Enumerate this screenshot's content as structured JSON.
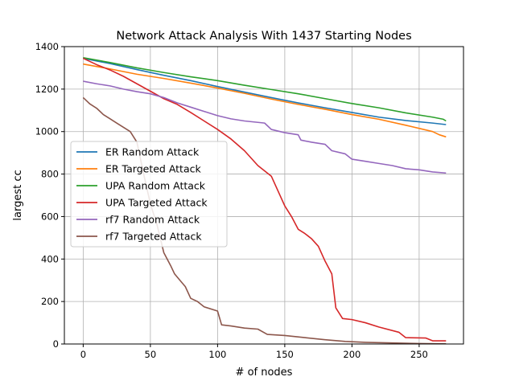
{
  "chart_data": {
    "type": "line",
    "title": "Network Attack Analysis With 1437 Starting Nodes",
    "xlabel": "# of nodes",
    "ylabel": "largest cc",
    "xlim": [
      -14,
      283
    ],
    "ylim": [
      0,
      1400
    ],
    "xticks": [
      0,
      50,
      100,
      150,
      200,
      250
    ],
    "yticks": [
      0,
      200,
      400,
      600,
      800,
      1000,
      1200,
      1400
    ],
    "grid": true,
    "legend_position": "center-left",
    "series": [
      {
        "name": "ER Random Attack",
        "color": "#1f77b4",
        "points": [
          [
            0,
            1345
          ],
          [
            20,
            1320
          ],
          [
            40,
            1292
          ],
          [
            60,
            1265
          ],
          [
            80,
            1240
          ],
          [
            100,
            1212
          ],
          [
            120,
            1186
          ],
          [
            140,
            1160
          ],
          [
            160,
            1135
          ],
          [
            180,
            1112
          ],
          [
            200,
            1090
          ],
          [
            220,
            1068
          ],
          [
            240,
            1052
          ],
          [
            260,
            1040
          ],
          [
            270,
            1033
          ]
        ]
      },
      {
        "name": "ER Targeted Attack",
        "color": "#ff7f0e",
        "points": [
          [
            0,
            1318
          ],
          [
            20,
            1295
          ],
          [
            40,
            1270
          ],
          [
            60,
            1250
          ],
          [
            80,
            1228
          ],
          [
            100,
            1205
          ],
          [
            120,
            1180
          ],
          [
            140,
            1153
          ],
          [
            160,
            1128
          ],
          [
            180,
            1105
          ],
          [
            200,
            1080
          ],
          [
            220,
            1058
          ],
          [
            240,
            1030
          ],
          [
            260,
            1000
          ],
          [
            265,
            985
          ],
          [
            270,
            975
          ]
        ]
      },
      {
        "name": "UPA Random Attack",
        "color": "#2ca02c",
        "points": [
          [
            0,
            1348
          ],
          [
            20,
            1325
          ],
          [
            40,
            1300
          ],
          [
            60,
            1278
          ],
          [
            80,
            1258
          ],
          [
            100,
            1240
          ],
          [
            120,
            1218
          ],
          [
            140,
            1198
          ],
          [
            160,
            1178
          ],
          [
            180,
            1155
          ],
          [
            200,
            1132
          ],
          [
            220,
            1112
          ],
          [
            240,
            1088
          ],
          [
            260,
            1068
          ],
          [
            268,
            1058
          ],
          [
            270,
            1050
          ]
        ]
      },
      {
        "name": "UPA Targeted Attack",
        "color": "#d62728",
        "points": [
          [
            0,
            1345
          ],
          [
            10,
            1315
          ],
          [
            20,
            1290
          ],
          [
            30,
            1260
          ],
          [
            40,
            1225
          ],
          [
            50,
            1190
          ],
          [
            60,
            1155
          ],
          [
            70,
            1128
          ],
          [
            80,
            1090
          ],
          [
            90,
            1050
          ],
          [
            100,
            1010
          ],
          [
            110,
            965
          ],
          [
            120,
            910
          ],
          [
            130,
            840
          ],
          [
            140,
            790
          ],
          [
            145,
            720
          ],
          [
            150,
            650
          ],
          [
            155,
            600
          ],
          [
            160,
            540
          ],
          [
            165,
            520
          ],
          [
            170,
            495
          ],
          [
            175,
            460
          ],
          [
            180,
            390
          ],
          [
            185,
            330
          ],
          [
            188,
            170
          ],
          [
            193,
            120
          ],
          [
            200,
            115
          ],
          [
            210,
            100
          ],
          [
            220,
            80
          ],
          [
            235,
            55
          ],
          [
            240,
            30
          ],
          [
            255,
            28
          ],
          [
            260,
            15
          ],
          [
            270,
            15
          ]
        ]
      },
      {
        "name": "rf7 Random Attack",
        "color": "#9467bd",
        "points": [
          [
            0,
            1237
          ],
          [
            10,
            1225
          ],
          [
            20,
            1215
          ],
          [
            30,
            1200
          ],
          [
            40,
            1188
          ],
          [
            50,
            1178
          ],
          [
            60,
            1160
          ],
          [
            70,
            1135
          ],
          [
            80,
            1115
          ],
          [
            90,
            1095
          ],
          [
            100,
            1075
          ],
          [
            110,
            1060
          ],
          [
            120,
            1050
          ],
          [
            135,
            1040
          ],
          [
            140,
            1010
          ],
          [
            150,
            995
          ],
          [
            160,
            985
          ],
          [
            162,
            960
          ],
          [
            170,
            950
          ],
          [
            180,
            940
          ],
          [
            185,
            910
          ],
          [
            195,
            895
          ],
          [
            200,
            870
          ],
          [
            210,
            860
          ],
          [
            220,
            850
          ],
          [
            230,
            840
          ],
          [
            240,
            825
          ],
          [
            250,
            820
          ],
          [
            260,
            810
          ],
          [
            270,
            805
          ]
        ]
      },
      {
        "name": "rf7 Targeted Attack",
        "color": "#8c564b",
        "points": [
          [
            0,
            1160
          ],
          [
            5,
            1130
          ],
          [
            10,
            1110
          ],
          [
            15,
            1080
          ],
          [
            20,
            1060
          ],
          [
            25,
            1040
          ],
          [
            30,
            1020
          ],
          [
            35,
            1000
          ],
          [
            40,
            950
          ],
          [
            45,
            800
          ],
          [
            50,
            660
          ],
          [
            55,
            560
          ],
          [
            60,
            430
          ],
          [
            65,
            370
          ],
          [
            68,
            330
          ],
          [
            72,
            300
          ],
          [
            76,
            270
          ],
          [
            80,
            215
          ],
          [
            85,
            200
          ],
          [
            90,
            175
          ],
          [
            100,
            155
          ],
          [
            103,
            90
          ],
          [
            110,
            85
          ],
          [
            120,
            75
          ],
          [
            130,
            70
          ],
          [
            137,
            45
          ],
          [
            150,
            40
          ],
          [
            165,
            30
          ],
          [
            180,
            20
          ],
          [
            195,
            12
          ],
          [
            210,
            8
          ],
          [
            230,
            5
          ],
          [
            250,
            2
          ],
          [
            270,
            1
          ]
        ]
      }
    ]
  }
}
